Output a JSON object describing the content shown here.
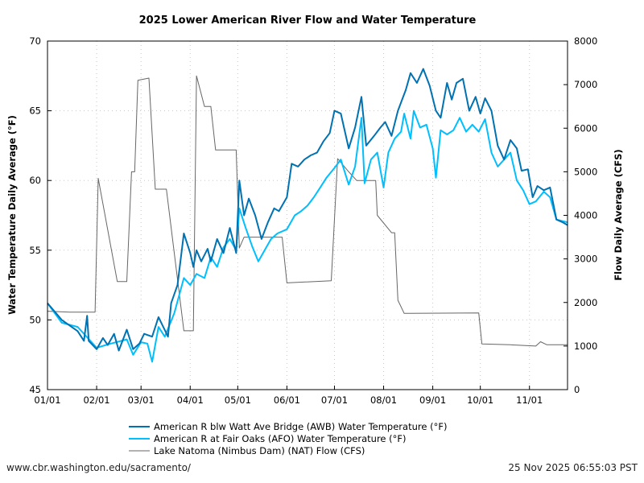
{
  "chart_data": {
    "type": "line",
    "title": "2025 Lower American River Flow and Water Temperature",
    "year": 2025,
    "xlim": [
      "01-01",
      "11-25"
    ],
    "x_ticks": [
      "01/01",
      "02/01",
      "03/01",
      "04/01",
      "05/01",
      "06/01",
      "07/01",
      "08/01",
      "09/01",
      "10/01",
      "11/01"
    ],
    "y_left": {
      "label": "Water Temperature Daily Average (°F)",
      "lim": [
        45,
        70
      ],
      "ticks": [
        "45",
        "50",
        "55",
        "60",
        "65",
        "70"
      ]
    },
    "y_right": {
      "label": "Flow Daily Average (CFS)",
      "lim": [
        0,
        8000
      ],
      "ticks": [
        "0",
        "1000",
        "2000",
        "3000",
        "4000",
        "5000",
        "6000",
        "7000",
        "8000"
      ]
    },
    "grid": true,
    "legend_position": "bottom",
    "series": [
      {
        "name": "American R blw Watt Ave Bridge (AWB) Water Temperature (°F)",
        "axis": "left",
        "color": "#0072b2",
        "points": [
          [
            "01-01",
            51.2
          ],
          [
            "01-10",
            50.0
          ],
          [
            "01-20",
            49.2
          ],
          [
            "01-24",
            48.5
          ],
          [
            "01-26",
            50.3
          ],
          [
            "01-27",
            48.5
          ],
          [
            "02-01",
            47.9
          ],
          [
            "02-05",
            48.7
          ],
          [
            "02-08",
            48.2
          ],
          [
            "02-12",
            49.0
          ],
          [
            "02-15",
            47.8
          ],
          [
            "02-20",
            49.3
          ],
          [
            "02-24",
            47.9
          ],
          [
            "02-28",
            48.3
          ],
          [
            "03-03",
            49.0
          ],
          [
            "03-08",
            48.8
          ],
          [
            "03-12",
            50.2
          ],
          [
            "03-15",
            49.5
          ],
          [
            "03-18",
            48.8
          ],
          [
            "03-20",
            51.2
          ],
          [
            "03-24",
            52.5
          ],
          [
            "03-28",
            56.2
          ],
          [
            "04-01",
            54.8
          ],
          [
            "04-03",
            53.8
          ],
          [
            "04-05",
            55.0
          ],
          [
            "04-08",
            54.2
          ],
          [
            "04-12",
            55.1
          ],
          [
            "04-14",
            54.2
          ],
          [
            "04-18",
            55.8
          ],
          [
            "04-22",
            54.8
          ],
          [
            "04-26",
            56.6
          ],
          [
            "04-30",
            54.8
          ],
          [
            "05-02",
            60.0
          ],
          [
            "05-05",
            57.5
          ],
          [
            "05-08",
            58.7
          ],
          [
            "05-12",
            57.5
          ],
          [
            "05-16",
            55.8
          ],
          [
            "05-20",
            57.0
          ],
          [
            "05-24",
            58.0
          ],
          [
            "05-27",
            57.8
          ],
          [
            "06-01",
            58.8
          ],
          [
            "06-04",
            61.2
          ],
          [
            "06-08",
            61.0
          ],
          [
            "06-12",
            61.5
          ],
          [
            "06-16",
            61.8
          ],
          [
            "06-20",
            62.0
          ],
          [
            "06-24",
            62.8
          ],
          [
            "06-28",
            63.4
          ],
          [
            "07-01",
            65.0
          ],
          [
            "07-05",
            64.8
          ],
          [
            "07-10",
            62.3
          ],
          [
            "07-14",
            63.8
          ],
          [
            "07-18",
            66.0
          ],
          [
            "07-21",
            62.5
          ],
          [
            "07-26",
            63.2
          ],
          [
            "07-30",
            63.8
          ],
          [
            "08-02",
            64.2
          ],
          [
            "08-06",
            63.2
          ],
          [
            "08-10",
            65.0
          ],
          [
            "08-15",
            66.5
          ],
          [
            "08-18",
            67.7
          ],
          [
            "08-22",
            67.0
          ],
          [
            "08-26",
            68.0
          ],
          [
            "08-30",
            66.8
          ],
          [
            "09-03",
            65.0
          ],
          [
            "09-06",
            64.5
          ],
          [
            "09-10",
            67.0
          ],
          [
            "09-13",
            65.8
          ],
          [
            "09-16",
            67.0
          ],
          [
            "09-20",
            67.3
          ],
          [
            "09-24",
            65.0
          ],
          [
            "09-28",
            66.0
          ],
          [
            "10-01",
            64.8
          ],
          [
            "10-04",
            65.9
          ],
          [
            "10-08",
            65.0
          ],
          [
            "10-12",
            62.5
          ],
          [
            "10-16",
            61.5
          ],
          [
            "10-20",
            62.9
          ],
          [
            "10-24",
            62.3
          ],
          [
            "10-27",
            60.7
          ],
          [
            "10-31",
            60.8
          ],
          [
            "11-03",
            58.8
          ],
          [
            "11-06",
            59.6
          ],
          [
            "11-10",
            59.3
          ],
          [
            "11-14",
            59.5
          ],
          [
            "11-18",
            57.2
          ],
          [
            "11-22",
            57.0
          ],
          [
            "11-25",
            56.8
          ]
        ]
      },
      {
        "name": "American R at Fair Oaks (AFO) Water Temperature (°F)",
        "axis": "left",
        "color": "#00bfff",
        "points": [
          [
            "01-01",
            51.2
          ],
          [
            "01-10",
            49.8
          ],
          [
            "01-20",
            49.5
          ],
          [
            "02-01",
            48.0
          ],
          [
            "02-10",
            48.3
          ],
          [
            "02-20",
            48.6
          ],
          [
            "02-24",
            47.5
          ],
          [
            "03-01",
            48.4
          ],
          [
            "03-05",
            48.3
          ],
          [
            "03-08",
            47.0
          ],
          [
            "03-12",
            49.5
          ],
          [
            "03-16",
            48.8
          ],
          [
            "03-22",
            50.5
          ],
          [
            "03-28",
            53.0
          ],
          [
            "04-01",
            52.5
          ],
          [
            "04-05",
            53.3
          ],
          [
            "04-10",
            53.0
          ],
          [
            "04-14",
            54.5
          ],
          [
            "04-18",
            53.8
          ],
          [
            "04-22",
            55.2
          ],
          [
            "04-26",
            55.8
          ],
          [
            "04-30",
            55.0
          ],
          [
            "05-02",
            58.0
          ],
          [
            "05-06",
            56.6
          ],
          [
            "05-10",
            55.3
          ],
          [
            "05-14",
            54.2
          ],
          [
            "05-18",
            55.0
          ],
          [
            "05-22",
            55.8
          ],
          [
            "05-26",
            56.2
          ],
          [
            "06-01",
            56.5
          ],
          [
            "06-06",
            57.5
          ],
          [
            "06-10",
            57.8
          ],
          [
            "06-14",
            58.2
          ],
          [
            "06-18",
            58.8
          ],
          [
            "06-22",
            59.5
          ],
          [
            "06-26",
            60.2
          ],
          [
            "07-01",
            60.9
          ],
          [
            "07-05",
            61.5
          ],
          [
            "07-10",
            59.7
          ],
          [
            "07-14",
            61.0
          ],
          [
            "07-18",
            64.5
          ],
          [
            "07-20",
            59.8
          ],
          [
            "07-24",
            61.5
          ],
          [
            "07-28",
            62.0
          ],
          [
            "08-01",
            59.5
          ],
          [
            "08-04",
            62.0
          ],
          [
            "08-08",
            63.0
          ],
          [
            "08-12",
            63.5
          ],
          [
            "08-14",
            64.8
          ],
          [
            "08-18",
            63.0
          ],
          [
            "08-20",
            65.0
          ],
          [
            "08-24",
            63.8
          ],
          [
            "08-28",
            64.0
          ],
          [
            "09-01",
            62.3
          ],
          [
            "09-03",
            60.2
          ],
          [
            "09-06",
            63.6
          ],
          [
            "09-10",
            63.3
          ],
          [
            "09-14",
            63.6
          ],
          [
            "09-18",
            64.5
          ],
          [
            "09-22",
            63.5
          ],
          [
            "09-26",
            64.0
          ],
          [
            "09-30",
            63.5
          ],
          [
            "10-04",
            64.4
          ],
          [
            "10-08",
            62.0
          ],
          [
            "10-12",
            61.0
          ],
          [
            "10-16",
            61.5
          ],
          [
            "10-20",
            62.0
          ],
          [
            "10-24",
            60.0
          ],
          [
            "10-28",
            59.3
          ],
          [
            "11-01",
            58.3
          ],
          [
            "11-05",
            58.5
          ],
          [
            "11-10",
            59.2
          ],
          [
            "11-14",
            58.8
          ],
          [
            "11-18",
            57.2
          ],
          [
            "11-25",
            57.0
          ]
        ]
      },
      {
        "name": "Lake Natoma (Nimbus Dam) (NAT) Flow (CFS)",
        "axis": "right",
        "color": "#666666",
        "points": [
          [
            "01-01",
            1800
          ],
          [
            "01-15",
            1780
          ],
          [
            "01-31",
            1780
          ],
          [
            "02-02",
            4850
          ],
          [
            "02-14",
            2480
          ],
          [
            "02-20",
            2480
          ],
          [
            "02-23",
            5000
          ],
          [
            "02-25",
            5000
          ],
          [
            "02-27",
            7100
          ],
          [
            "03-06",
            7150
          ],
          [
            "03-10",
            4600
          ],
          [
            "03-17",
            4600
          ],
          [
            "03-28",
            1350
          ],
          [
            "04-03",
            1350
          ],
          [
            "04-05",
            7200
          ],
          [
            "04-10",
            6500
          ],
          [
            "04-14",
            6500
          ],
          [
            "04-17",
            5500
          ],
          [
            "04-30",
            5500
          ],
          [
            "05-02",
            3250
          ],
          [
            "05-05",
            3500
          ],
          [
            "05-29",
            3500
          ],
          [
            "06-01",
            2450
          ],
          [
            "06-29",
            2500
          ],
          [
            "07-03",
            5300
          ],
          [
            "07-10",
            5000
          ],
          [
            "07-15",
            4800
          ],
          [
            "07-27",
            4800
          ],
          [
            "07-28",
            4000
          ],
          [
            "08-06",
            3600
          ],
          [
            "08-08",
            3600
          ],
          [
            "08-10",
            2050
          ],
          [
            "08-14",
            1750
          ],
          [
            "09-30",
            1760
          ],
          [
            "10-02",
            1050
          ],
          [
            "10-20",
            1030
          ],
          [
            "11-05",
            1000
          ],
          [
            "11-08",
            1100
          ],
          [
            "11-12",
            1030
          ],
          [
            "11-25",
            1030
          ]
        ]
      }
    ]
  },
  "footer": {
    "url": "www.cbr.washington.edu/sacramento/",
    "timestamp": "25 Nov 2025 06:55:03 PST"
  }
}
